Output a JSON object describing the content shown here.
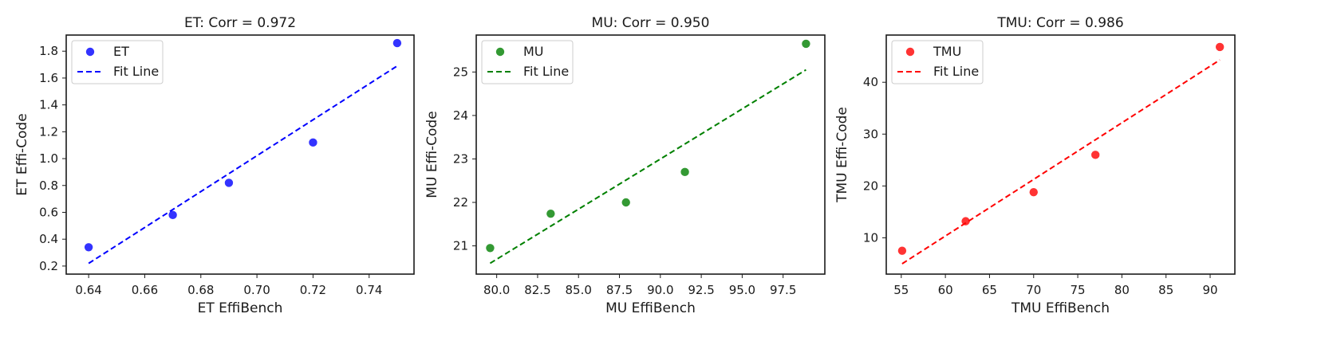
{
  "chart_data": [
    {
      "type": "scatter",
      "title": "ET: Corr = 0.972",
      "xlabel": "ET EffiBench",
      "ylabel": "ET Effi-Code",
      "xlim": [
        0.632,
        0.756
      ],
      "ylim": [
        0.14,
        1.92
      ],
      "xticks": [
        0.64,
        0.66,
        0.68,
        0.7,
        0.72,
        0.74
      ],
      "xtick_labels": [
        "0.64",
        "0.66",
        "0.68",
        "0.70",
        "0.72",
        "0.74"
      ],
      "yticks": [
        0.2,
        0.4,
        0.6,
        0.8,
        1.0,
        1.2,
        1.4,
        1.6,
        1.8
      ],
      "ytick_labels": [
        "0.2",
        "0.4",
        "0.6",
        "0.8",
        "1.0",
        "1.2",
        "1.4",
        "1.6",
        "1.8"
      ],
      "color": "#0000ff",
      "legend_position": "upper-left",
      "grid": false,
      "series": [
        {
          "name": "ET",
          "kind": "scatter",
          "x": [
            0.64,
            0.67,
            0.69,
            0.72,
            0.75
          ],
          "y": [
            0.34,
            0.58,
            0.82,
            1.12,
            1.86
          ]
        },
        {
          "name": "Fit Line",
          "kind": "dashed-line",
          "x": [
            0.64,
            0.75
          ],
          "y": [
            0.22,
            1.69
          ]
        }
      ]
    },
    {
      "type": "scatter",
      "title": "MU: Corr = 0.950",
      "xlabel": "MU EffiBench",
      "ylabel": "MU Effi-Code",
      "xlim": [
        78.75,
        100.05
      ],
      "ylim": [
        20.35,
        25.85
      ],
      "xticks": [
        80.0,
        82.5,
        85.0,
        87.5,
        90.0,
        92.5,
        95.0,
        97.5
      ],
      "xtick_labels": [
        "80.0",
        "82.5",
        "85.0",
        "87.5",
        "90.0",
        "92.5",
        "95.0",
        "97.5"
      ],
      "yticks": [
        21,
        22,
        23,
        24,
        25
      ],
      "ytick_labels": [
        "21",
        "22",
        "23",
        "24",
        "25"
      ],
      "color": "#008000",
      "legend_position": "upper-left",
      "grid": false,
      "series": [
        {
          "name": "MU",
          "kind": "scatter",
          "x": [
            79.6,
            83.3,
            87.9,
            91.5,
            98.9
          ],
          "y": [
            20.95,
            21.74,
            22.0,
            22.7,
            25.65
          ]
        },
        {
          "name": "Fit Line",
          "kind": "dashed-line",
          "x": [
            79.6,
            98.9
          ],
          "y": [
            20.6,
            25.05
          ]
        }
      ]
    },
    {
      "type": "scatter",
      "title": "TMU: Corr = 0.986",
      "xlabel": "TMU EffiBench",
      "ylabel": "TMU Effi-Code",
      "xlim": [
        53.3,
        92.8
      ],
      "ylim": [
        3.0,
        49.1
      ],
      "xticks": [
        55,
        60,
        65,
        70,
        75,
        80,
        85,
        90
      ],
      "xtick_labels": [
        "55",
        "60",
        "65",
        "70",
        "75",
        "80",
        "85",
        "90"
      ],
      "yticks": [
        10,
        20,
        30,
        40
      ],
      "ytick_labels": [
        "10",
        "20",
        "30",
        "40"
      ],
      "color": "#ff0000",
      "legend_position": "upper-left",
      "grid": false,
      "series": [
        {
          "name": "TMU",
          "kind": "scatter",
          "x": [
            55.1,
            62.3,
            70.0,
            77.0,
            91.1
          ],
          "y": [
            7.5,
            13.2,
            18.8,
            26.0,
            46.8
          ]
        },
        {
          "name": "Fit Line",
          "kind": "dashed-line",
          "x": [
            55.1,
            91.1
          ],
          "y": [
            5.0,
            44.3
          ]
        }
      ]
    }
  ]
}
